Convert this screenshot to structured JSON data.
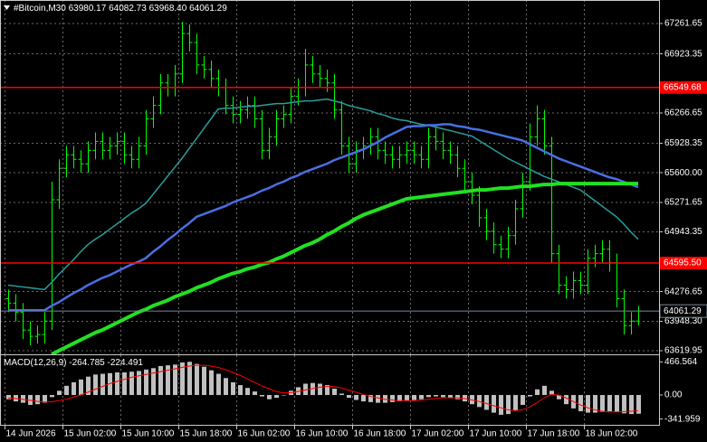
{
  "chart_data": [
    {
      "type": "ohlc",
      "title": "#Bitcoin,M30",
      "last_quote": {
        "values": [
          63980.17,
          64082.73,
          63968.4,
          64061.29
        ],
        "value_labels": [
          "63980.17",
          "64082.73",
          "63968.40",
          "64061.29"
        ]
      },
      "categories": [
        "14 Jun 2026",
        null,
        null,
        null,
        null,
        null,
        null,
        null,
        "15 Jun 02:00",
        null,
        null,
        null,
        null,
        null,
        null,
        null,
        "15 Jun 10:00",
        null,
        null,
        null,
        null,
        null,
        null,
        null,
        "15 Jun 18:00",
        null,
        null,
        null,
        null,
        null,
        null,
        null,
        "16 Jun 02:00",
        null,
        null,
        null,
        null,
        null,
        null,
        null,
        "16 Jun 10:00",
        null,
        null,
        null,
        null,
        null,
        null,
        null,
        "16 Jun 18:00",
        null,
        null,
        null,
        null,
        null,
        null,
        null,
        "17 Jun 02:00",
        null,
        null,
        null,
        null,
        null,
        null,
        null,
        "17 Jun 10:00",
        null,
        null,
        null,
        null,
        null,
        null,
        null,
        "17 Jun 18:00",
        null,
        null,
        null,
        null,
        null,
        null,
        null,
        "18 Jun 02:00",
        null,
        null,
        null,
        null,
        null,
        null,
        null
      ],
      "open": [
        64200,
        64150,
        64050,
        63850,
        63780,
        63800,
        63950,
        65300,
        65650,
        65800,
        65750,
        65700,
        65850,
        65950,
        65850,
        65900,
        65950,
        65800,
        65750,
        65900,
        66200,
        66350,
        66600,
        66550,
        66700,
        67150,
        67050,
        66800,
        66750,
        66650,
        66550,
        66350,
        66250,
        66300,
        66350,
        66200,
        65850,
        66000,
        66200,
        66250,
        66450,
        66550,
        66800,
        66700,
        66650,
        66600,
        66300,
        65900,
        65700,
        65850,
        65900,
        66000,
        65850,
        65800,
        65750,
        65800,
        65850,
        65800,
        65750,
        66000,
        65950,
        65850,
        65800,
        65650,
        65500,
        65350,
        65100,
        64950,
        64800,
        64750,
        64900,
        65200,
        65500,
        66000,
        66200,
        65900,
        64700,
        64350,
        64300,
        64400,
        64350,
        64650,
        64700,
        64750,
        64600,
        64200,
        63900,
        63950
      ],
      "high": [
        64300,
        64250,
        64150,
        63950,
        63900,
        64050,
        65500,
        65750,
        65900,
        65900,
        65850,
        65950,
        66050,
        66050,
        66000,
        66050,
        66050,
        65900,
        66000,
        66300,
        66450,
        66700,
        66700,
        66800,
        67280,
        67250,
        67150,
        66900,
        66850,
        66750,
        66650,
        66450,
        66400,
        66450,
        66450,
        66300,
        66100,
        66300,
        66350,
        66550,
        66650,
        66980,
        66900,
        66800,
        66750,
        66700,
        66400,
        66000,
        65950,
        66000,
        66100,
        66100,
        65950,
        65900,
        65900,
        65950,
        65950,
        65900,
        66100,
        66100,
        66050,
        65950,
        65900,
        65750,
        65600,
        65450,
        65200,
        65050,
        64900,
        65000,
        65300,
        65600,
        66150,
        66350,
        66300,
        66000,
        64800,
        64450,
        64500,
        64500,
        64750,
        64800,
        64850,
        64850,
        64700,
        64300,
        64050,
        64120
      ],
      "low": [
        64050,
        63950,
        63750,
        63680,
        63700,
        63700,
        63850,
        65200,
        65550,
        65650,
        65600,
        65600,
        65750,
        65750,
        65750,
        65800,
        65700,
        65650,
        65650,
        65800,
        66100,
        66250,
        66450,
        66450,
        66600,
        66950,
        66700,
        66650,
        66550,
        66450,
        66250,
        66150,
        66150,
        66200,
        66100,
        65750,
        65750,
        65900,
        66100,
        66150,
        66350,
        66450,
        66600,
        66550,
        66500,
        66200,
        65800,
        65600,
        65600,
        65750,
        65800,
        65750,
        65700,
        65650,
        65650,
        65700,
        65700,
        65650,
        65650,
        65850,
        65750,
        65700,
        65550,
        65400,
        65250,
        65000,
        64850,
        64700,
        64650,
        64650,
        64800,
        65100,
        65400,
        65900,
        65800,
        64600,
        64250,
        64200,
        64200,
        64250,
        64250,
        64550,
        64600,
        64500,
        64100,
        63800,
        63800,
        63900
      ],
      "close": [
        64150,
        64050,
        63850,
        63780,
        63800,
        63950,
        65300,
        65650,
        65800,
        65750,
        65700,
        65850,
        65950,
        65850,
        65900,
        65950,
        65800,
        65750,
        65900,
        66200,
        66350,
        66600,
        66550,
        66700,
        67150,
        67050,
        66800,
        66750,
        66650,
        66550,
        66350,
        66250,
        66300,
        66350,
        66200,
        65850,
        66000,
        66200,
        66250,
        66450,
        66550,
        66800,
        66700,
        66650,
        66600,
        66300,
        65900,
        65700,
        65850,
        65900,
        66000,
        65850,
        65800,
        65750,
        65800,
        65850,
        65800,
        65750,
        66000,
        65950,
        65850,
        65800,
        65650,
        65500,
        65350,
        65100,
        64950,
        64800,
        64750,
        64900,
        65200,
        65500,
        66000,
        66200,
        65900,
        64700,
        64350,
        64300,
        64400,
        64350,
        64650,
        64700,
        64750,
        64600,
        64200,
        63900,
        63950,
        64061.29
      ],
      "color": "#00ff00",
      "price_line_color": "#778899",
      "lines": [
        {
          "color": "#2a9d9d",
          "width": 1.5,
          "values": [
            64350,
            64340,
            64330,
            64320,
            64310,
            64300,
            64380,
            64470,
            64550,
            64630,
            64720,
            64800,
            64860,
            64910,
            64970,
            65030,
            65090,
            65150,
            65200,
            65260,
            65360,
            65460,
            65560,
            65660,
            65760,
            65870,
            65980,
            66090,
            66200,
            66310,
            66320,
            66320,
            66330,
            66340,
            66340,
            66350,
            66360,
            66370,
            66370,
            66380,
            66390,
            66400,
            66400,
            66410,
            66420,
            66400,
            66380,
            66350,
            66330,
            66310,
            66290,
            66260,
            66240,
            66210,
            66190,
            66180,
            66160,
            66140,
            66130,
            66110,
            66090,
            66070,
            66050,
            66030,
            66010,
            65960,
            65910,
            65860,
            65810,
            65760,
            65720,
            65680,
            65640,
            65600,
            65560,
            65530,
            65500,
            65470,
            65440,
            65410,
            65350,
            65290,
            65230,
            65170,
            65110,
            65030,
            64940,
            64860
          ]
        },
        {
          "color": "#4a6fe3",
          "width": 2.5,
          "values": [
            64070,
            64070,
            64070,
            64070,
            64070,
            64070,
            64120,
            64160,
            64210,
            64260,
            64300,
            64350,
            64390,
            64430,
            64460,
            64500,
            64540,
            64580,
            64610,
            64650,
            64720,
            64780,
            64850,
            64910,
            64980,
            65040,
            65110,
            65140,
            65170,
            65200,
            65230,
            65270,
            65300,
            65330,
            65360,
            65400,
            65430,
            65470,
            65500,
            65540,
            65570,
            65610,
            65640,
            65670,
            65700,
            65740,
            65770,
            65800,
            65830,
            65860,
            65900,
            65940,
            65990,
            66030,
            66070,
            66110,
            66120,
            66120,
            66130,
            66130,
            66140,
            66140,
            66120,
            66110,
            66090,
            66080,
            66060,
            66040,
            66020,
            66000,
            65980,
            65960,
            65920,
            65880,
            65840,
            65800,
            65760,
            65730,
            65700,
            65670,
            65640,
            65610,
            65580,
            65550,
            65530,
            65500,
            65470,
            65440
          ]
        },
        {
          "color": "#22e022",
          "width": 4,
          "values": [
            null,
            null,
            null,
            null,
            null,
            null,
            63580,
            63620,
            63660,
            63700,
            63740,
            63780,
            63820,
            63850,
            63890,
            63930,
            63970,
            64010,
            64050,
            64080,
            64120,
            64150,
            64180,
            64220,
            64250,
            64280,
            64320,
            64350,
            64380,
            64420,
            64450,
            64480,
            64500,
            64530,
            64550,
            64580,
            64600,
            64640,
            64670,
            64710,
            64750,
            64790,
            64820,
            64860,
            64910,
            64950,
            65000,
            65040,
            65090,
            65130,
            65160,
            65190,
            65220,
            65250,
            65280,
            65310,
            65320,
            65330,
            65340,
            65350,
            65360,
            65370,
            65380,
            65390,
            65400,
            65410,
            65410,
            65420,
            65430,
            65430,
            65440,
            65450,
            65450,
            65460,
            65470,
            65470,
            65480,
            65480,
            65480,
            65480,
            65480,
            65480,
            65480,
            65480,
            65480,
            65480,
            65480,
            65480
          ]
        }
      ],
      "levels": [
        {
          "value": 66549.68,
          "label": "66549.68",
          "color": "#ff0000"
        },
        {
          "value": 64595.5,
          "label": "64595.50",
          "color": "#ff0000"
        }
      ],
      "ylim": [
        63580,
        67523
      ],
      "yticks": [
        67261.65,
        66923.35,
        66266.65,
        65928.35,
        {
          "value": 65600,
          "label": "65600.00"
        },
        65271.65,
        64943.35,
        64276.65,
        {
          "value": 63948.3,
          "label": "63948.30"
        },
        63619.95
      ],
      "grid": true
    },
    {
      "type": "macd",
      "title": "MACD(12,26,9)",
      "series": [
        {
          "style": "histogram",
          "color": "#c0c0c0",
          "values": [
            -60,
            -90,
            -110,
            -140,
            -130,
            -110,
            -30,
            60,
            130,
            180,
            220,
            260,
            290,
            300,
            310,
            320,
            320,
            330,
            340,
            360,
            380,
            410,
            420,
            430,
            460,
            470,
            440,
            400,
            350,
            300,
            240,
            180,
            140,
            100,
            50,
            -20,
            -60,
            -40,
            0,
            60,
            110,
            160,
            170,
            160,
            140,
            90,
            20,
            -40,
            -70,
            -90,
            -100,
            -110,
            -110,
            -100,
            -90,
            -80,
            -70,
            -60,
            -30,
            -20,
            -30,
            -40,
            -60,
            -90,
            -130,
            -170,
            -210,
            -250,
            -280,
            -270,
            -220,
            -140,
            -20,
            80,
            130,
            60,
            -60,
            -130,
            -190,
            -230,
            -250,
            -250,
            -240,
            -230,
            -240,
            -260,
            -270,
            -264.785
          ]
        },
        {
          "style": "line",
          "color": "#ff0000",
          "values": [
            -40,
            -50,
            -60,
            -75,
            -90,
            -100,
            -95,
            -80,
            -60,
            -30,
            0,
            40,
            80,
            120,
            160,
            190,
            220,
            250,
            270,
            290,
            310,
            330,
            350,
            370,
            390,
            410,
            420,
            420,
            410,
            390,
            360,
            320,
            280,
            230,
            180,
            130,
            90,
            50,
            30,
            30,
            50,
            70,
            90,
            110,
            120,
            120,
            100,
            70,
            40,
            10,
            -20,
            -40,
            -60,
            -70,
            -80,
            -80,
            -80,
            -70,
            -60,
            -50,
            -40,
            -40,
            -40,
            -50,
            -70,
            -90,
            -120,
            -150,
            -180,
            -210,
            -220,
            -210,
            -170,
            -110,
            -40,
            10,
            0,
            -40,
            -90,
            -140,
            -180,
            -210,
            -230,
            -240,
            -240,
            -235,
            -230,
            -224.491
          ]
        }
      ],
      "ylim": [
        -422,
        563
      ],
      "yticks": [
        466.564,
        {
          "value": 0,
          "label": "0.00"
        },
        -341.959
      ],
      "grid": false
    }
  ]
}
